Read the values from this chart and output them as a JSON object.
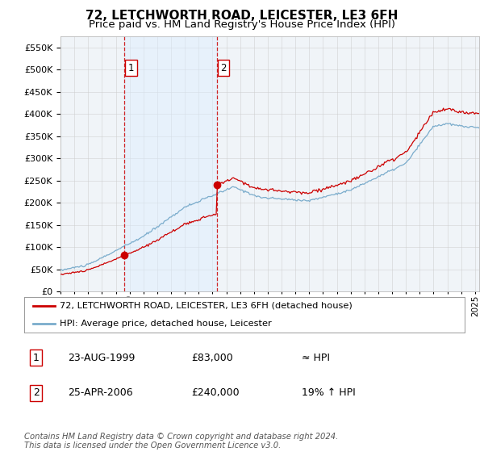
{
  "title": "72, LETCHWORTH ROAD, LEICESTER, LE3 6FH",
  "subtitle": "Price paid vs. HM Land Registry's House Price Index (HPI)",
  "ytick_values": [
    0,
    50000,
    100000,
    150000,
    200000,
    250000,
    300000,
    350000,
    400000,
    450000,
    500000,
    550000
  ],
  "ylim": [
    0,
    575000
  ],
  "xlim_start": 1995.0,
  "xlim_end": 2025.3,
  "sale1_date": 1999.64,
  "sale1_price": 83000,
  "sale2_date": 2006.32,
  "sale2_price": 240000,
  "sale1_label": "1",
  "sale2_label": "2",
  "legend_line1": "72, LETCHWORTH ROAD, LEICESTER, LE3 6FH (detached house)",
  "legend_line2": "HPI: Average price, detached house, Leicester",
  "table_row1_num": "1",
  "table_row1_date": "23-AUG-1999",
  "table_row1_price": "£83,000",
  "table_row1_hpi": "≈ HPI",
  "table_row2_num": "2",
  "table_row2_date": "25-APR-2006",
  "table_row2_price": "£240,000",
  "table_row2_hpi": "19% ↑ HPI",
  "footer": "Contains HM Land Registry data © Crown copyright and database right 2024.\nThis data is licensed under the Open Government Licence v3.0.",
  "line_color_red": "#cc0000",
  "line_color_blue": "#7aaccc",
  "fill_color_blue": "#ddeeff",
  "grid_color": "#cccccc",
  "bg_color": "#ffffff",
  "plot_bg_color": "#f0f4f8",
  "vline_color": "#cc0000",
  "box_bg": "#ffffff",
  "title_fontsize": 11,
  "subtitle_fontsize": 9.5,
  "tick_fontsize": 8
}
